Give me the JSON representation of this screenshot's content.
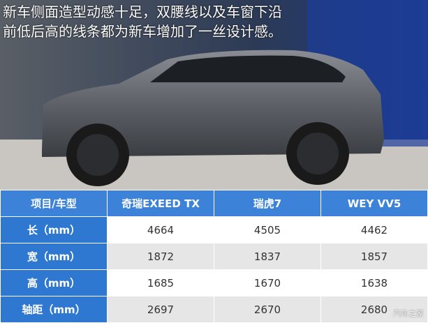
{
  "caption": [
    "新车侧面造型动感十足，双腰线以及车窗下沿",
    "前低后高的线条都为新车增加了一丝设计感。"
  ],
  "table": {
    "header": [
      "项目/车型",
      "奇瑞EXEED TX",
      "瑞虎7",
      "WEY VV5"
    ],
    "rows": [
      [
        "长（mm）",
        4664,
        4505,
        4462
      ],
      [
        "宽（mm）",
        1872,
        1837,
        1857
      ],
      [
        "高（mm）",
        1685,
        1670,
        1638
      ],
      [
        "轴距（mm）",
        2697,
        2670,
        2680
      ]
    ]
  },
  "watermark": "汽车之家"
}
